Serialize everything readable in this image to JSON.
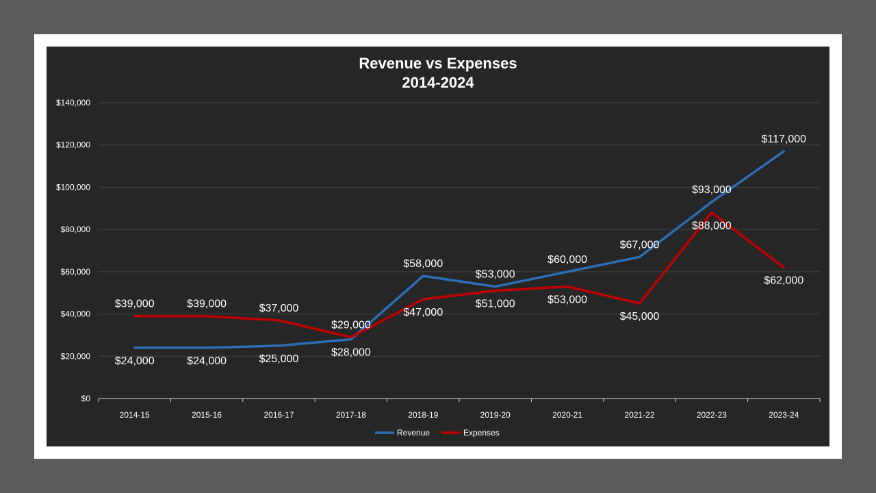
{
  "chart_data": {
    "type": "line",
    "title": "Revenue vs Expenses",
    "subtitle": "2014-2024",
    "categories": [
      "2014-15",
      "2015-16",
      "2016-17",
      "2017-18",
      "2018-19",
      "2019-20",
      "2020-21",
      "2021-22",
      "2022-23",
      "2023-24"
    ],
    "series": [
      {
        "name": "Revenue",
        "color": "#2e6eb5",
        "values": [
          24000,
          24000,
          25000,
          28000,
          58000,
          53000,
          60000,
          67000,
          93000,
          117000
        ],
        "labels": [
          "$24,000",
          "$24,000",
          "$25,000",
          "$28,000",
          "$58,000",
          "$53,000",
          "$60,000",
          "$67,000",
          "$93,000",
          "$117,000"
        ]
      },
      {
        "name": "Expenses",
        "color": "#c00000",
        "values": [
          39000,
          39000,
          37000,
          29000,
          47000,
          51000,
          53000,
          45000,
          88000,
          62000
        ],
        "labels": [
          "$39,000",
          "$39,000",
          "$37,000",
          "$29,000",
          "$47,000",
          "$51,000",
          "$53,000",
          "$45,000",
          "$88,000",
          "$62,000"
        ]
      }
    ],
    "ylim": [
      0,
      140000
    ],
    "yticks": [
      0,
      20000,
      40000,
      60000,
      80000,
      100000,
      120000,
      140000
    ],
    "ytick_labels": [
      "$0",
      "$20,000",
      "$40,000",
      "$60,000",
      "$80,000",
      "$100,000",
      "$120,000",
      "$140,000"
    ],
    "grid": true,
    "legend_position": "bottom"
  }
}
